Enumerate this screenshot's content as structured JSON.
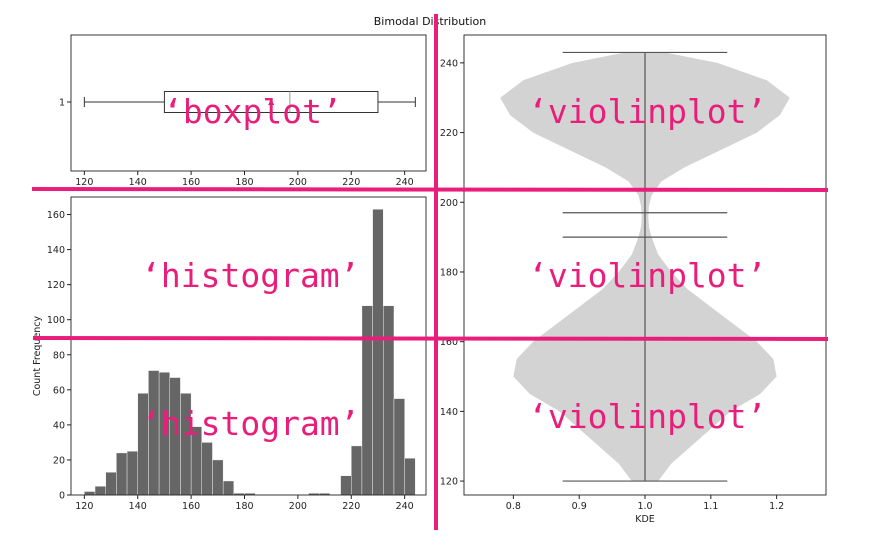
{
  "suptitle": "Bimodal Distribution",
  "colors": {
    "bar": "#666666",
    "violin": "#d3d3d3",
    "stat_line": "#555555",
    "annotation": "#e91e7a"
  },
  "annotations": {
    "boxplot": "‘boxplot’",
    "violin_top": "‘violinplot’",
    "violin_mid": "‘violinplot’",
    "violin_bottom": "‘violinplot’",
    "histogram_mid": "‘histogram’",
    "histogram_bottom": "‘histogram’"
  },
  "chart_data": [
    {
      "type": "boxplot",
      "orientation": "horizontal",
      "category_label": "1",
      "whisker_low": 120,
      "q1": 150,
      "median": 197,
      "q3": 230,
      "whisker_high": 244,
      "mean": 190,
      "mean_marker": "triangle",
      "xlim": [
        115,
        248
      ],
      "xticks": [
        120,
        140,
        160,
        180,
        200,
        220,
        240
      ]
    },
    {
      "type": "bar",
      "subtype": "histogram",
      "ylabel": "Count Frequency",
      "bin_width": 4,
      "bin_starts": [
        120,
        124,
        128,
        132,
        136,
        140,
        144,
        148,
        152,
        156,
        160,
        164,
        168,
        172,
        176,
        180,
        184,
        188,
        192,
        196,
        200,
        204,
        208,
        212,
        216,
        220,
        224,
        228,
        232,
        236,
        240
      ],
      "values": [
        2,
        5,
        13,
        24,
        25,
        58,
        71,
        70,
        67,
        58,
        39,
        30,
        20,
        8,
        1,
        1,
        0,
        0,
        0,
        0,
        0,
        1,
        1,
        0,
        11,
        28,
        108,
        163,
        108,
        55,
        21
      ],
      "xlim": [
        115,
        248
      ],
      "ylim": [
        0,
        170
      ],
      "xticks": [
        120,
        140,
        160,
        180,
        200,
        220,
        240
      ],
      "yticks": [
        0,
        20,
        40,
        60,
        80,
        100,
        120,
        140,
        160
      ]
    },
    {
      "type": "violin",
      "xlabel": "KDE",
      "position": 1.0,
      "kde_y": [
        120,
        125,
        130,
        135,
        140,
        145,
        150,
        155,
        160,
        165,
        170,
        175,
        180,
        185,
        190,
        193,
        196,
        199,
        202,
        206,
        210,
        215,
        220,
        225,
        230,
        235,
        240,
        243
      ],
      "kde_halfwidth": [
        0.02,
        0.04,
        0.07,
        0.1,
        0.13,
        0.175,
        0.2,
        0.195,
        0.17,
        0.135,
        0.1,
        0.065,
        0.04,
        0.02,
        0.01,
        0.006,
        0.005,
        0.006,
        0.01,
        0.025,
        0.06,
        0.115,
        0.17,
        0.205,
        0.22,
        0.185,
        0.11,
        0.03
      ],
      "min": 120,
      "max": 243,
      "median": 197,
      "mean": 190,
      "cap_halfwidth": 0.125,
      "xlim": [
        0.725,
        1.275
      ],
      "ylim": [
        116,
        248
      ],
      "xticks": [
        0.8,
        0.9,
        1.0,
        1.1,
        1.2
      ],
      "xtick_labels": [
        "0.8",
        "0.9",
        "1.0",
        "1.1",
        "1.2"
      ],
      "yticks": [
        120,
        140,
        160,
        180,
        200,
        220,
        240
      ]
    }
  ]
}
